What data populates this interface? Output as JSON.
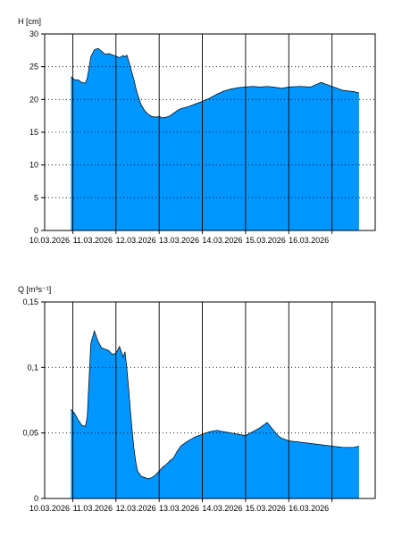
{
  "colors": {
    "fill": "#0096ff",
    "line": "#000000",
    "grid": "#000000",
    "background": "#ffffff"
  },
  "chart_data": [
    {
      "type": "area",
      "ylabel": "H [cm]",
      "ylim": [
        0,
        30
      ],
      "yticks": [
        0,
        5,
        10,
        15,
        20,
        25,
        30
      ],
      "ytick_labels": [
        "0",
        "5",
        "10",
        "15",
        "20",
        "25",
        "30"
      ],
      "x_day_labels": [
        "10.03.2026",
        "11.03.2026",
        "12.03.2026",
        "13.03.2026",
        "14.03.2026",
        "15.03.2026",
        "16.03.2026"
      ],
      "grid": true,
      "x": [
        "09.03.2026 23:00",
        "10.03.2026 01:00",
        "10.03.2026 03:00",
        "10.03.2026 05:00",
        "10.03.2026 07:00",
        "10.03.2026 08:00",
        "10.03.2026 09:00",
        "10.03.2026 10:00",
        "10.03.2026 12:00",
        "10.03.2026 14:00",
        "10.03.2026 16:00",
        "10.03.2026 18:00",
        "10.03.2026 20:00",
        "10.03.2026 22:00",
        "11.03.2026 00:00",
        "11.03.2026 02:00",
        "11.03.2026 04:00",
        "11.03.2026 05:00",
        "11.03.2026 06:00",
        "11.03.2026 07:00",
        "11.03.2026 08:00",
        "11.03.2026 09:00",
        "11.03.2026 10:00",
        "11.03.2026 11:00",
        "11.03.2026 12:00",
        "11.03.2026 14:00",
        "11.03.2026 16:00",
        "11.03.2026 18:00",
        "11.03.2026 20:00",
        "11.03.2026 22:00",
        "12.03.2026 00:00",
        "12.03.2026 02:00",
        "12.03.2026 04:00",
        "12.03.2026 06:00",
        "12.03.2026 08:00",
        "12.03.2026 10:00",
        "12.03.2026 12:00",
        "12.03.2026 16:00",
        "12.03.2026 20:00",
        "13.03.2026 00:00",
        "13.03.2026 04:00",
        "13.03.2026 08:00",
        "13.03.2026 12:00",
        "13.03.2026 16:00",
        "13.03.2026 20:00",
        "14.03.2026 00:00",
        "14.03.2026 04:00",
        "14.03.2026 08:00",
        "14.03.2026 12:00",
        "14.03.2026 15:00",
        "14.03.2026 18:00",
        "14.03.2026 20:00",
        "15.03.2026 00:00",
        "15.03.2026 06:00",
        "15.03.2026 12:00",
        "15.03.2026 18:00",
        "16.03.2026 00:00",
        "16.03.2026 06:00",
        "16.03.2026 12:00",
        "16.03.2026 15:00"
      ],
      "values": [
        23.5,
        23.0,
        23.0,
        22.6,
        22.5,
        23.2,
        24.8,
        26.5,
        27.6,
        27.8,
        27.4,
        26.9,
        27.0,
        26.8,
        26.6,
        26.4,
        26.7,
        26.5,
        26.8,
        26.0,
        25.0,
        24.0,
        23.0,
        21.8,
        20.8,
        19.2,
        18.3,
        17.7,
        17.4,
        17.3,
        17.4,
        17.2,
        17.3,
        17.5,
        17.9,
        18.3,
        18.6,
        18.9,
        19.3,
        19.7,
        20.2,
        20.8,
        21.3,
        21.6,
        21.8,
        21.9,
        22.0,
        21.9,
        22.0,
        21.9,
        21.8,
        21.7,
        21.9,
        22.0,
        21.9,
        22.6,
        22.0,
        21.4,
        21.2,
        21.0
      ]
    },
    {
      "type": "area",
      "ylabel": "Q [m³s⁻¹]",
      "ylim": [
        0,
        0.15
      ],
      "yticks": [
        0,
        0.05,
        0.1,
        0.15
      ],
      "ytick_labels": [
        "0",
        "0,05",
        "0,1",
        "0,15"
      ],
      "x_day_labels": [
        "10.03.2026",
        "11.03.2026",
        "12.03.2026",
        "13.03.2026",
        "14.03.2026",
        "15.03.2026",
        "16.03.2026"
      ],
      "grid": true,
      "x": [
        "09.03.2026 23:00",
        "10.03.2026 01:00",
        "10.03.2026 03:00",
        "10.03.2026 05:00",
        "10.03.2026 07:00",
        "10.03.2026 08:00",
        "10.03.2026 09:00",
        "10.03.2026 10:00",
        "10.03.2026 12:00",
        "10.03.2026 14:00",
        "10.03.2026 16:00",
        "10.03.2026 18:00",
        "10.03.2026 20:00",
        "10.03.2026 22:00",
        "11.03.2026 00:00",
        "11.03.2026 02:00",
        "11.03.2026 04:00",
        "11.03.2026 05:00",
        "11.03.2026 06:00",
        "11.03.2026 07:00",
        "11.03.2026 08:00",
        "11.03.2026 09:00",
        "11.03.2026 10:00",
        "11.03.2026 11:00",
        "11.03.2026 12:00",
        "11.03.2026 14:00",
        "11.03.2026 16:00",
        "11.03.2026 18:00",
        "11.03.2026 20:00",
        "11.03.2026 22:00",
        "12.03.2026 00:00",
        "12.03.2026 02:00",
        "12.03.2026 04:00",
        "12.03.2026 06:00",
        "12.03.2026 08:00",
        "12.03.2026 10:00",
        "12.03.2026 12:00",
        "12.03.2026 16:00",
        "12.03.2026 20:00",
        "13.03.2026 00:00",
        "13.03.2026 04:00",
        "13.03.2026 08:00",
        "13.03.2026 12:00",
        "13.03.2026 16:00",
        "13.03.2026 20:00",
        "14.03.2026 00:00",
        "14.03.2026 04:00",
        "14.03.2026 08:00",
        "14.03.2026 12:00",
        "14.03.2026 15:00",
        "14.03.2026 18:00",
        "14.03.2026 20:00",
        "15.03.2026 00:00",
        "15.03.2026 06:00",
        "15.03.2026 12:00",
        "15.03.2026 18:00",
        "16.03.2026 00:00",
        "16.03.2026 06:00",
        "16.03.2026 12:00",
        "16.03.2026 15:00"
      ],
      "values": [
        0.068,
        0.065,
        0.06,
        0.056,
        0.055,
        0.062,
        0.09,
        0.118,
        0.128,
        0.12,
        0.115,
        0.114,
        0.113,
        0.11,
        0.111,
        0.116,
        0.108,
        0.112,
        0.1,
        0.085,
        0.068,
        0.052,
        0.038,
        0.028,
        0.021,
        0.017,
        0.016,
        0.015,
        0.016,
        0.018,
        0.021,
        0.024,
        0.026,
        0.029,
        0.031,
        0.036,
        0.04,
        0.044,
        0.047,
        0.049,
        0.051,
        0.052,
        0.051,
        0.05,
        0.049,
        0.048,
        0.051,
        0.054,
        0.058,
        0.053,
        0.048,
        0.046,
        0.044,
        0.043,
        0.042,
        0.041,
        0.04,
        0.039,
        0.039,
        0.04
      ]
    }
  ]
}
